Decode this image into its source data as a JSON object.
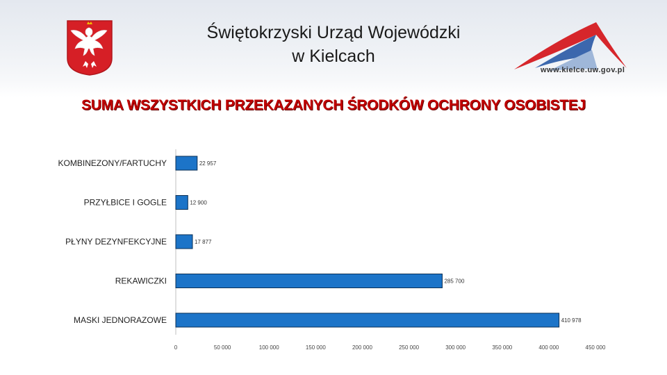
{
  "header": {
    "title_line1": "Świętokrzyski Urząd Wojewódzki",
    "title_line2": "w Kielcach",
    "url": "www.kielce.uw.gov.pl"
  },
  "colors": {
    "title": "#c00000",
    "bar": "#1c74c8",
    "bar_edge": "#0b2f55",
    "emblem_red": "#d61f26"
  },
  "icons": {
    "emblem": "white-eagle-icon",
    "logo": "roof-logo-icon"
  },
  "chart_data": {
    "type": "bar",
    "orientation": "horizontal",
    "title": "SUMA WSZYSTKICH PRZEKAZANYCH ŚRODKÓW OCHRONY OSOBISTEJ",
    "categories": [
      "KOMBINEZONY/FARTUCHY",
      "PRZYŁBICE I GOGLE",
      "PŁYNY DEZYNFEKCYJNE",
      "REKAWICZKI",
      "MASKI JEDNORAZOWE"
    ],
    "values": [
      22957,
      12900,
      17877,
      285700,
      410978
    ],
    "value_labels": [
      "22 957",
      "12 900",
      "17 877",
      "285 700",
      "410 978"
    ],
    "xlim": [
      0,
      450000
    ],
    "ticks": [
      0,
      50000,
      100000,
      150000,
      200000,
      250000,
      300000,
      350000,
      400000,
      450000
    ],
    "tick_labels": [
      "0",
      "50 000",
      "100 000",
      "150 000",
      "200 000",
      "250 000",
      "300 000",
      "350 000",
      "400 000",
      "450 000"
    ],
    "grid": false,
    "legend": "none"
  }
}
